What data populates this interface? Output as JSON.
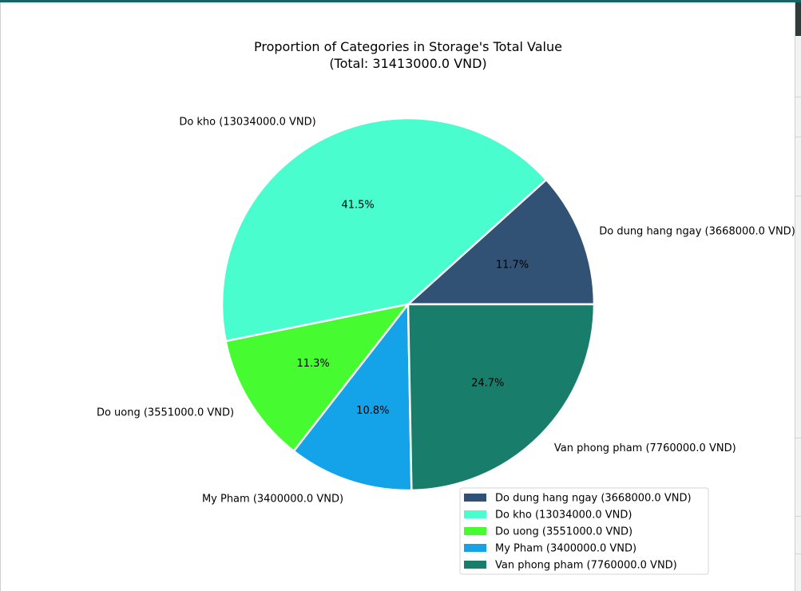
{
  "chart_data": {
    "type": "pie",
    "title_lines": [
      "Proportion of Categories in Storage's Total Value",
      "(Total: 31413000.0 VND)"
    ],
    "slices": [
      {
        "label": "Do dung hang ngay (3668000.0 VND)",
        "value": 3668000,
        "percent_label": "11.7%",
        "color": "#325275"
      },
      {
        "label": "Do kho (13034000.0 VND)",
        "value": 13034000,
        "percent_label": "41.5%",
        "color": "#4afdcf"
      },
      {
        "label": "Do uong (3551000.0 VND)",
        "value": 3551000,
        "percent_label": "11.3%",
        "color": "#47fb31"
      },
      {
        "label": "My Pham (3400000.0 VND)",
        "value": 3400000,
        "percent_label": "10.8%",
        "color": "#14a2e9"
      },
      {
        "label": "Van phong pham (7760000.0 VND)",
        "value": 7760000,
        "percent_label": "24.7%",
        "color": "#187e6b"
      }
    ],
    "legend_placement": "bottom-right",
    "start_angle_deg": 0,
    "direction": "counterclockwise"
  }
}
